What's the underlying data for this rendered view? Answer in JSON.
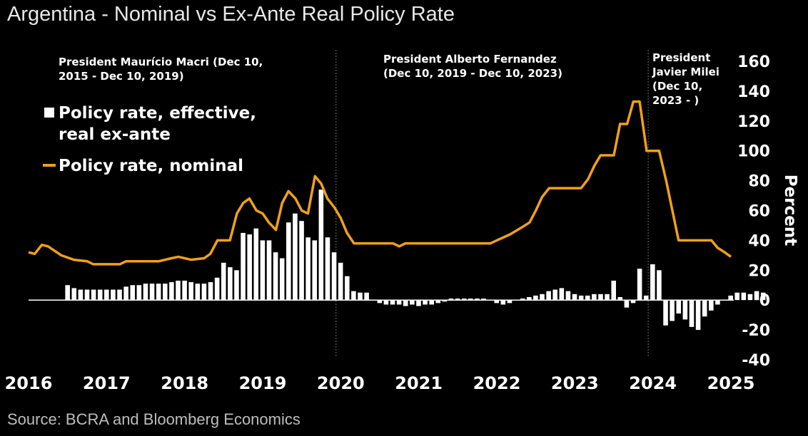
{
  "title": "Argentina - Nominal vs Ex-Ante Real Policy Rate",
  "source": "Source: BCRA and Bloomberg Economics",
  "colors": {
    "background": "#000000",
    "nominal_line": "#f0a01a",
    "real_bars": "#ffffff",
    "divider": "#6e6e6e"
  },
  "annotations": [
    {
      "lines": [
        "President Maurício Macri (Dec 10,",
        "2015 - Dec 10, 2019)"
      ]
    },
    {
      "lines": [
        "President Alberto Fernandez",
        "(Dec 10, 2019 - Dec 10, 2023)"
      ]
    },
    {
      "lines": [
        "President",
        "Javier Milei",
        "(Dec 10,",
        "2023 - )"
      ]
    }
  ],
  "chart_data": {
    "type": "bar",
    "title": "Argentina - Nominal vs Ex-Ante Real Policy Rate",
    "ylabel": "Percent",
    "ylim": [
      -40,
      160
    ],
    "y_ticks": [
      -40,
      -20,
      0,
      20,
      40,
      60,
      80,
      100,
      120,
      140,
      160
    ],
    "x_ticks": [
      "2016",
      "2017",
      "2018",
      "2019",
      "2020",
      "2021",
      "2022",
      "2023",
      "2024",
      "2025"
    ],
    "xlim": [
      2016.0,
      2025.0
    ],
    "legend": [
      {
        "name": "Policy rate, effective, real ex-ante",
        "lines": [
          "Policy rate, effective,",
          "real ex-ante"
        ]
      },
      {
        "name": "Policy rate, nominal",
        "lines": [
          "Policy rate, nominal"
        ]
      }
    ],
    "dividers": [
      2019.94,
      2023.94
    ],
    "series": [
      {
        "name": "Policy rate, effective, real ex-ante",
        "type": "bar",
        "start": 2016.5,
        "step": 0.0833,
        "values": [
          10,
          8,
          7,
          7,
          7,
          7,
          7,
          7,
          7,
          9,
          10,
          10,
          11,
          11,
          11,
          11,
          12,
          13,
          13,
          12,
          11,
          11,
          12,
          15,
          25,
          22,
          20,
          45,
          44,
          48,
          40,
          40,
          32,
          28,
          52,
          58,
          53,
          42,
          40,
          74,
          42,
          32,
          25,
          16,
          6,
          5,
          5,
          0,
          -2,
          -3,
          -3,
          -3,
          -4,
          -3,
          -4,
          -3,
          -3,
          -2,
          -1,
          1,
          1,
          1,
          1,
          1,
          1,
          0,
          -2,
          -3,
          -2,
          0,
          1,
          2,
          3,
          4,
          6,
          7,
          8,
          6,
          4,
          3,
          3,
          4,
          4,
          4,
          13,
          2,
          -5,
          -2,
          21,
          3,
          24,
          20,
          -17,
          -14,
          -9,
          -13,
          -18,
          -20,
          -11,
          -7,
          -3,
          0,
          3,
          5,
          5,
          4,
          6,
          5
        ]
      },
      {
        "name": "Policy rate, nominal",
        "type": "line",
        "points": [
          [
            2016.0,
            32
          ],
          [
            2016.08,
            31
          ],
          [
            2016.17,
            37
          ],
          [
            2016.25,
            36
          ],
          [
            2016.42,
            30
          ],
          [
            2016.58,
            27
          ],
          [
            2016.75,
            26
          ],
          [
            2016.83,
            24
          ],
          [
            2017.17,
            24
          ],
          [
            2017.25,
            26
          ],
          [
            2017.67,
            26
          ],
          [
            2017.83,
            28
          ],
          [
            2017.92,
            29
          ],
          [
            2018.0,
            28
          ],
          [
            2018.08,
            27
          ],
          [
            2018.25,
            28
          ],
          [
            2018.33,
            31
          ],
          [
            2018.42,
            40
          ],
          [
            2018.58,
            40
          ],
          [
            2018.67,
            58
          ],
          [
            2018.75,
            65
          ],
          [
            2018.83,
            68
          ],
          [
            2018.92,
            60
          ],
          [
            2019.0,
            58
          ],
          [
            2019.08,
            52
          ],
          [
            2019.17,
            47
          ],
          [
            2019.25,
            65
          ],
          [
            2019.33,
            73
          ],
          [
            2019.42,
            68
          ],
          [
            2019.5,
            60
          ],
          [
            2019.58,
            58
          ],
          [
            2019.67,
            83
          ],
          [
            2019.75,
            78
          ],
          [
            2019.83,
            68
          ],
          [
            2019.92,
            62
          ],
          [
            2020.0,
            55
          ],
          [
            2020.08,
            45
          ],
          [
            2020.17,
            38
          ],
          [
            2020.67,
            38
          ],
          [
            2020.75,
            36
          ],
          [
            2020.83,
            38
          ],
          [
            2021.92,
            38
          ],
          [
            2022.0,
            40
          ],
          [
            2022.17,
            44
          ],
          [
            2022.33,
            49
          ],
          [
            2022.42,
            52
          ],
          [
            2022.5,
            60
          ],
          [
            2022.58,
            69
          ],
          [
            2022.67,
            75
          ],
          [
            2023.08,
            75
          ],
          [
            2023.17,
            81
          ],
          [
            2023.25,
            90
          ],
          [
            2023.33,
            97
          ],
          [
            2023.5,
            97
          ],
          [
            2023.58,
            118
          ],
          [
            2023.67,
            118
          ],
          [
            2023.75,
            133
          ],
          [
            2023.83,
            133
          ],
          [
            2023.92,
            100
          ],
          [
            2024.08,
            100
          ],
          [
            2024.17,
            80
          ],
          [
            2024.25,
            60
          ],
          [
            2024.33,
            40
          ],
          [
            2024.75,
            40
          ],
          [
            2024.83,
            35
          ],
          [
            2024.92,
            32
          ],
          [
            2025.0,
            29
          ]
        ]
      }
    ]
  }
}
